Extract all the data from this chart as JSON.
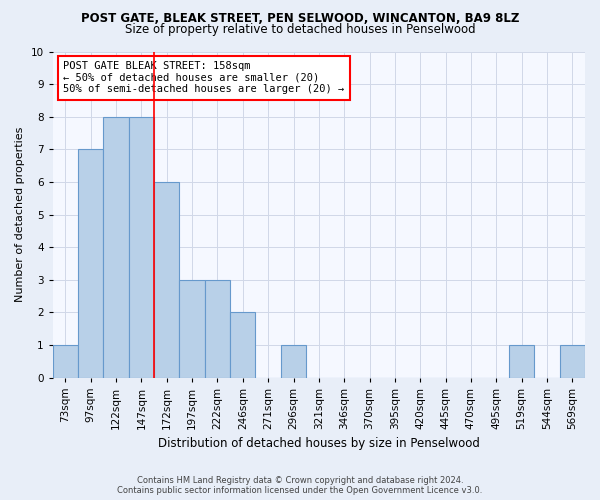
{
  "title": "POST GATE, BLEAK STREET, PEN SELWOOD, WINCANTON, BA9 8LZ",
  "subtitle": "Size of property relative to detached houses in Penselwood",
  "xlabel": "Distribution of detached houses by size in Penselwood",
  "ylabel": "Number of detached properties",
  "footer": "Contains HM Land Registry data © Crown copyright and database right 2024.\nContains public sector information licensed under the Open Government Licence v3.0.",
  "categories": [
    "73sqm",
    "97sqm",
    "122sqm",
    "147sqm",
    "172sqm",
    "197sqm",
    "222sqm",
    "246sqm",
    "271sqm",
    "296sqm",
    "321sqm",
    "346sqm",
    "370sqm",
    "395sqm",
    "420sqm",
    "445sqm",
    "470sqm",
    "495sqm",
    "519sqm",
    "544sqm",
    "569sqm"
  ],
  "values": [
    1,
    7,
    8,
    8,
    6,
    3,
    3,
    2,
    0,
    1,
    0,
    0,
    0,
    0,
    0,
    0,
    0,
    0,
    1,
    0,
    1
  ],
  "bar_color": "#b8d0e8",
  "bar_edge_color": "#6699cc",
  "ylim": [
    0,
    10
  ],
  "yticks": [
    0,
    1,
    2,
    3,
    4,
    5,
    6,
    7,
    8,
    9,
    10
  ],
  "red_line_x": 3.5,
  "annotation_text": "POST GATE BLEAK STREET: 158sqm\n← 50% of detached houses are smaller (20)\n50% of semi-detached houses are larger (20) →",
  "bg_color": "#e8eef8",
  "plot_bg_color": "#f5f8ff",
  "grid_color": "#d0d8e8",
  "title_fontsize": 8.5,
  "subtitle_fontsize": 8.5,
  "ylabel_fontsize": 8,
  "xlabel_fontsize": 8.5,
  "tick_fontsize": 7.5,
  "annot_fontsize": 7.5
}
